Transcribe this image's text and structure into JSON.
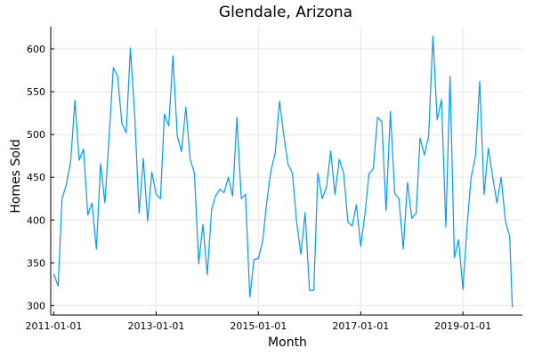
{
  "chart_data": {
    "type": "line",
    "title": "Glendale, Arizona",
    "xlabel": "Month",
    "ylabel": "Homes Sold",
    "xlim": [
      "2010-12-10",
      "2020-03-01"
    ],
    "ylim": [
      289,
      626
    ],
    "grid": true,
    "line_color": "#009AF9",
    "x_ticks": [
      "2011-01-01",
      "2013-01-01",
      "2015-01-01",
      "2017-01-01",
      "2019-01-01"
    ],
    "y_ticks": [
      300,
      350,
      400,
      450,
      500,
      550,
      600
    ],
    "x": [
      "2011-01-01",
      "2011-02-01",
      "2011-03-01",
      "2011-04-01",
      "2011-05-01",
      "2011-06-01",
      "2011-07-01",
      "2011-08-01",
      "2011-09-01",
      "2011-10-01",
      "2011-11-01",
      "2011-12-01",
      "2012-01-01",
      "2012-02-01",
      "2012-03-01",
      "2012-04-01",
      "2012-05-01",
      "2012-06-01",
      "2012-07-01",
      "2012-08-01",
      "2012-09-01",
      "2012-10-01",
      "2012-11-01",
      "2012-12-01",
      "2013-01-01",
      "2013-02-01",
      "2013-03-01",
      "2013-04-01",
      "2013-05-01",
      "2013-06-01",
      "2013-07-01",
      "2013-08-01",
      "2013-09-01",
      "2013-10-01",
      "2013-11-01",
      "2013-12-01",
      "2014-01-01",
      "2014-02-01",
      "2014-03-01",
      "2014-04-01",
      "2014-05-01",
      "2014-06-01",
      "2014-07-01",
      "2014-08-01",
      "2014-09-01",
      "2014-10-01",
      "2014-11-01",
      "2014-12-01",
      "2015-01-01",
      "2015-02-01",
      "2015-03-01",
      "2015-04-01",
      "2015-05-01",
      "2015-06-01",
      "2015-07-01",
      "2015-08-01",
      "2015-09-01",
      "2015-10-01",
      "2015-11-01",
      "2015-12-01",
      "2016-01-01",
      "2016-02-01",
      "2016-03-01",
      "2016-04-01",
      "2016-05-01",
      "2016-06-01",
      "2016-07-01",
      "2016-08-01",
      "2016-09-01",
      "2016-10-01",
      "2016-11-01",
      "2016-12-01",
      "2017-01-01",
      "2017-02-01",
      "2017-03-01",
      "2017-04-01",
      "2017-05-01",
      "2017-06-01",
      "2017-07-01",
      "2017-08-01",
      "2017-09-01",
      "2017-10-01",
      "2017-11-01",
      "2017-12-01",
      "2018-01-01",
      "2018-02-01",
      "2018-03-01",
      "2018-04-01",
      "2018-05-01",
      "2018-06-01",
      "2018-07-01",
      "2018-08-01",
      "2018-09-01",
      "2018-10-01",
      "2018-11-01",
      "2018-12-01",
      "2019-01-01",
      "2019-02-01",
      "2019-03-01",
      "2019-04-01",
      "2019-05-01",
      "2019-06-01",
      "2019-07-01",
      "2019-08-01",
      "2019-09-01",
      "2019-10-01",
      "2019-11-01",
      "2019-12-01"
    ],
    "series": [
      {
        "values": [
          337,
          323,
          425,
          442,
          468,
          540,
          470,
          483,
          406,
          420,
          366,
          466,
          420,
          500,
          578,
          568,
          513,
          502,
          601,
          522,
          408,
          472,
          399,
          456,
          430,
          425,
          524,
          510,
          592,
          498,
          480,
          532,
          471,
          455,
          349,
          395,
          336,
          412,
          428,
          436,
          432,
          450,
          428,
          520,
          425,
          430,
          310,
          354,
          355,
          376,
          420,
          458,
          478,
          539,
          500,
          465,
          455,
          398,
          360,
          409,
          318,
          318,
          455,
          425,
          438,
          481,
          430,
          471,
          455,
          398,
          393,
          418,
          369,
          408,
          454,
          460,
          520,
          515,
          411,
          527,
          431,
          425,
          366,
          444,
          402,
          408,
          496,
          476,
          498,
          615,
          517,
          541,
          392,
          568,
          356,
          377,
          319,
          396,
          450,
          475,
          562,
          430,
          484,
          451,
          420,
          450,
          398,
          381
        ]
      }
    ],
    "final_point": {
      "x": "2019-12-20",
      "y": 298
    }
  }
}
